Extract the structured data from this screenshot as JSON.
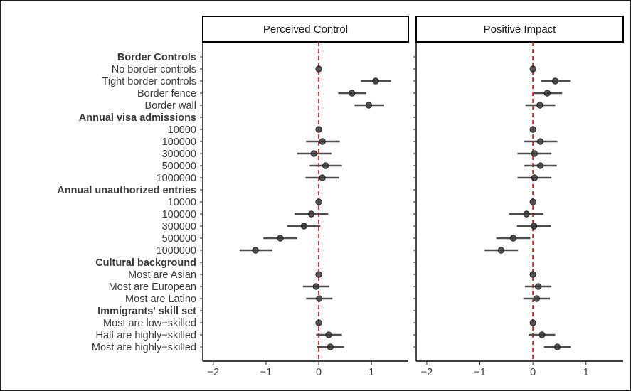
{
  "chart_data": {
    "type": "scatter",
    "subtype": "coefficient-plot",
    "panels": [
      "Perceived Control",
      "Positive Impact"
    ],
    "xlim": [
      -2.2,
      1.7
    ],
    "x_ticks": [
      -2,
      -1,
      0,
      1
    ],
    "x_tick_labels": [
      "−2",
      "−1",
      "0",
      "1"
    ],
    "reference_line": {
      "x": 0,
      "color": "#e41a1c",
      "style": "dashed"
    },
    "point_color": "#3a3a3a",
    "rows": [
      {
        "label": "Border Controls",
        "header": true
      },
      {
        "label": "No border controls",
        "est": [
          0.0,
          0.0
        ],
        "lo": [
          0.0,
          0.0
        ],
        "hi": [
          0.0,
          0.0
        ]
      },
      {
        "label": "Tight border controls",
        "est": [
          1.08,
          0.42
        ],
        "lo": [
          0.8,
          0.15
        ],
        "hi": [
          1.37,
          0.7
        ]
      },
      {
        "label": "Border fence",
        "est": [
          0.63,
          0.27
        ],
        "lo": [
          0.37,
          0.02
        ],
        "hi": [
          0.9,
          0.55
        ]
      },
      {
        "label": "Border wall",
        "est": [
          0.95,
          0.13
        ],
        "lo": [
          0.68,
          -0.14
        ],
        "hi": [
          1.24,
          0.42
        ]
      },
      {
        "label": "Annual visa admissions",
        "header": true
      },
      {
        "label": "10000",
        "est": [
          0.0,
          0.0
        ],
        "lo": [
          0.0,
          0.0
        ],
        "hi": [
          0.0,
          0.0
        ]
      },
      {
        "label": "100000",
        "est": [
          0.07,
          0.14
        ],
        "lo": [
          -0.24,
          -0.17
        ],
        "hi": [
          0.4,
          0.46
        ]
      },
      {
        "label": "300000",
        "est": [
          -0.09,
          0.03
        ],
        "lo": [
          -0.41,
          -0.29
        ],
        "hi": [
          0.24,
          0.35
        ]
      },
      {
        "label": "500000",
        "est": [
          0.13,
          0.14
        ],
        "lo": [
          -0.17,
          -0.16
        ],
        "hi": [
          0.44,
          0.45
        ]
      },
      {
        "label": "1000000",
        "est": [
          0.07,
          0.03
        ],
        "lo": [
          -0.25,
          -0.29
        ],
        "hi": [
          0.39,
          0.35
        ]
      },
      {
        "label": "Annual unauthorized entries",
        "header": true
      },
      {
        "label": "10000",
        "est": [
          0.0,
          0.0
        ],
        "lo": [
          0.0,
          0.0
        ],
        "hi": [
          0.0,
          0.0
        ]
      },
      {
        "label": "100000",
        "est": [
          -0.14,
          -0.12
        ],
        "lo": [
          -0.46,
          -0.45
        ],
        "hi": [
          0.18,
          0.2
        ]
      },
      {
        "label": "300000",
        "est": [
          -0.28,
          0.02
        ],
        "lo": [
          -0.6,
          -0.3
        ],
        "hi": [
          0.03,
          0.34
        ]
      },
      {
        "label": "500000",
        "est": [
          -0.73,
          -0.37
        ],
        "lo": [
          -1.05,
          -0.69
        ],
        "hi": [
          -0.41,
          -0.05
        ]
      },
      {
        "label": "1000000",
        "est": [
          -1.2,
          -0.6
        ],
        "lo": [
          -1.5,
          -0.91
        ],
        "hi": [
          -0.88,
          -0.28
        ]
      },
      {
        "label": "Cultural background",
        "header": true
      },
      {
        "label": "Most are Asian",
        "est": [
          0.0,
          0.0
        ],
        "lo": [
          0.0,
          0.0
        ],
        "hi": [
          0.0,
          0.0
        ]
      },
      {
        "label": "Most are European",
        "est": [
          -0.05,
          0.1
        ],
        "lo": [
          -0.3,
          -0.15
        ],
        "hi": [
          0.2,
          0.35
        ]
      },
      {
        "label": "Most are Latino",
        "est": [
          0.01,
          0.07
        ],
        "lo": [
          -0.24,
          -0.18
        ],
        "hi": [
          0.26,
          0.32
        ]
      },
      {
        "label": "Immigrants' skill set",
        "header": true
      },
      {
        "label": "Most are low−skilled",
        "est": [
          0.0,
          0.0
        ],
        "lo": [
          0.0,
          0.0
        ],
        "hi": [
          0.0,
          0.0
        ]
      },
      {
        "label": "Half are highly−skilled",
        "est": [
          0.19,
          0.17
        ],
        "lo": [
          -0.05,
          -0.08
        ],
        "hi": [
          0.44,
          0.42
        ]
      },
      {
        "label": "Most are highly−skilled",
        "est": [
          0.22,
          0.46
        ],
        "lo": [
          -0.03,
          0.21
        ],
        "hi": [
          0.48,
          0.71
        ]
      }
    ]
  }
}
